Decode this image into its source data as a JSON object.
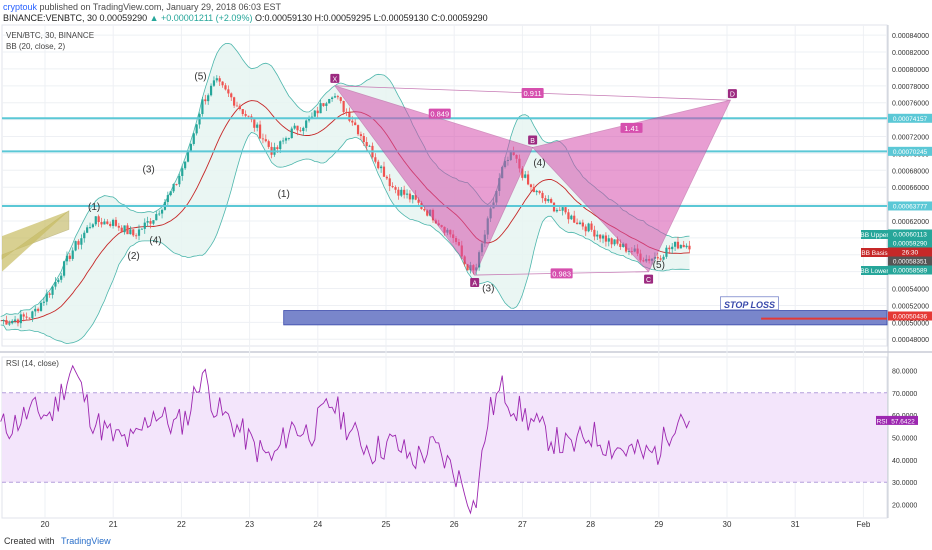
{
  "header": {
    "author": "cryptouk",
    "published_text": " published on TradingView.com, January 29, 2018 06:03 EST",
    "symbol_line": "BINANCE:VENBTC, 30",
    "last_price": "0.00059290",
    "change": "▲ +0.00001211 (+2.09%)",
    "ohlc": "O:0.00059130 H:0.00059295 L:0.00059130 C:0.00059290"
  },
  "chart_title": "VEN/BTC, 30, BINANCE",
  "bb_label": "BB (20, close, 2)",
  "rsi_label": "RSI (14, close)",
  "footer": {
    "created_with": "Created with",
    "brand": "TradingView"
  },
  "annotations": {
    "stop_loss": "STOP LOSS",
    "points": [
      "X",
      "A",
      "B",
      "C",
      "D"
    ],
    "ratios": [
      "0.911",
      "0.849",
      "1.41",
      "0.983"
    ],
    "waves": [
      "(1)",
      "(2)",
      "(3)",
      "(4)",
      "(5)",
      "(1)",
      "(2)",
      "(3)",
      "(4)",
      "(5)"
    ]
  },
  "colors": {
    "up": "#26a69a",
    "down": "#ef5350",
    "pattern": "#d64fae",
    "hline": "#5bc8d6",
    "rsi": "#9c27b0",
    "stop_box": "#7986cb"
  },
  "chart_data": [
    {
      "type": "line",
      "title": "VEN/BTC, 30, BINANCE",
      "xlabel": "",
      "ylabel": "",
      "x_ticks": [
        "20",
        "21",
        "22",
        "23",
        "24",
        "25",
        "26",
        "27",
        "28",
        "29",
        "30",
        "31",
        "Feb"
      ],
      "y_ticks": [
        "0.00084000",
        "0.00082000",
        "0.00080000",
        "0.00078000",
        "0.00076000",
        "0.00074000",
        "0.00072000",
        "0.00070000",
        "0.00068000",
        "0.00066000",
        "0.00064000",
        "0.00062000",
        "0.00060000",
        "0.00058000",
        "0.00056000",
        "0.00054000",
        "0.00052000",
        "0.00050000",
        "0.00048000"
      ],
      "ylim": [
        0.000472,
        0.000852
      ],
      "series": [
        {
          "name": "VEN/BTC",
          "x": [
            19.5,
            19.8,
            20.1,
            20.4,
            20.7,
            21.0,
            21.3,
            21.6,
            21.9,
            22.1,
            22.3,
            22.5,
            22.8,
            23.1,
            23.35,
            23.6,
            23.9,
            24.2,
            24.5,
            24.8,
            25.1,
            25.4,
            25.7,
            26.0,
            26.15,
            26.3,
            26.5,
            26.7,
            26.85,
            27.1,
            27.4,
            27.7,
            28.0,
            28.3,
            28.6,
            28.8,
            29.0,
            29.1,
            29.3,
            29.4
          ],
          "values": [
            0.000502,
            0.000508,
            0.00054,
            0.000585,
            0.00062,
            0.000618,
            0.000603,
            0.000625,
            0.00066,
            0.0007,
            0.00076,
            0.000785,
            0.00076,
            0.00073,
            0.0007,
            0.000725,
            0.00074,
            0.000773,
            0.00074,
            0.0007,
            0.00066,
            0.000645,
            0.000625,
            0.0006,
            0.00057,
            0.000558,
            0.00062,
            0.00068,
            0.0007,
            0.00066,
            0.00064,
            0.000625,
            0.00061,
            0.000595,
            0.000585,
            0.000575,
            0.000578,
            0.000585,
            0.000593,
            0.000592
          ]
        },
        {
          "name": "BB Upper",
          "x": [
            29.4
          ],
          "values": [
            0.00060113
          ]
        },
        {
          "name": "BB Basis",
          "x": [
            29.4
          ],
          "values": [
            0.0005926
          ]
        },
        {
          "name": "BB Lower",
          "x": [
            29.4
          ],
          "values": [
            0.00058589
          ]
        }
      ],
      "price_labels": [
        {
          "label": "",
          "value": "0.00074157"
        },
        {
          "label": "",
          "value": "0.00070245"
        },
        {
          "label": "",
          "value": "0.00063777"
        },
        {
          "label": "BB Upper",
          "value": "0.00060113"
        },
        {
          "label": "",
          "value": "0.00059290"
        },
        {
          "label": "BB Basis",
          "value": "26:30"
        },
        {
          "label": "",
          "value": "0.00058351"
        },
        {
          "label": "BB Lower",
          "value": "0.00058589"
        },
        {
          "label": "",
          "value": "0.00050436"
        }
      ],
      "horizontal_lines": [
        0.00074157,
        0.00070245,
        0.00063777,
        0.00050436
      ],
      "harmonic_pattern": {
        "X": [
          24.25,
          0.00078
        ],
        "A": [
          26.3,
          0.000556
        ],
        "B": [
          27.15,
          0.000707
        ],
        "C": [
          28.85,
          0.00056
        ],
        "D": [
          30.05,
          0.000763
        ]
      },
      "stop_loss_zone": [
        0.000497,
        0.000514
      ]
    },
    {
      "type": "line",
      "title": "RSI (14, close)",
      "y_ticks": [
        "80.0000",
        "70.0000",
        "60.0000",
        "50.0000",
        "40.0000",
        "30.0000",
        "20.0000"
      ],
      "ylim": [
        14,
        86
      ],
      "band": [
        30,
        70
      ],
      "series": [
        {
          "name": "RSI",
          "x": [
            19.5,
            19.8,
            20.1,
            20.4,
            20.7,
            21.0,
            21.3,
            21.6,
            21.9,
            22.1,
            22.3,
            22.5,
            22.8,
            23.1,
            23.35,
            23.6,
            23.9,
            24.2,
            24.5,
            24.8,
            25.1,
            25.4,
            25.7,
            26.0,
            26.15,
            26.3,
            26.5,
            26.7,
            26.85,
            27.1,
            27.4,
            27.7,
            28.0,
            28.3,
            28.6,
            28.8,
            29.0,
            29.1,
            29.3,
            29.4
          ],
          "values": [
            55,
            62,
            60,
            82,
            58,
            50,
            48,
            62,
            55,
            60,
            80,
            63,
            55,
            45,
            40,
            55,
            52,
            66,
            52,
            44,
            48,
            40,
            46,
            35,
            28,
            18,
            60,
            72,
            65,
            58,
            50,
            45,
            52,
            46,
            44,
            42,
            44,
            50,
            62,
            57.6422
          ]
        }
      ],
      "last_label": {
        "label": "RSI",
        "value": "57.6422"
      }
    }
  ]
}
